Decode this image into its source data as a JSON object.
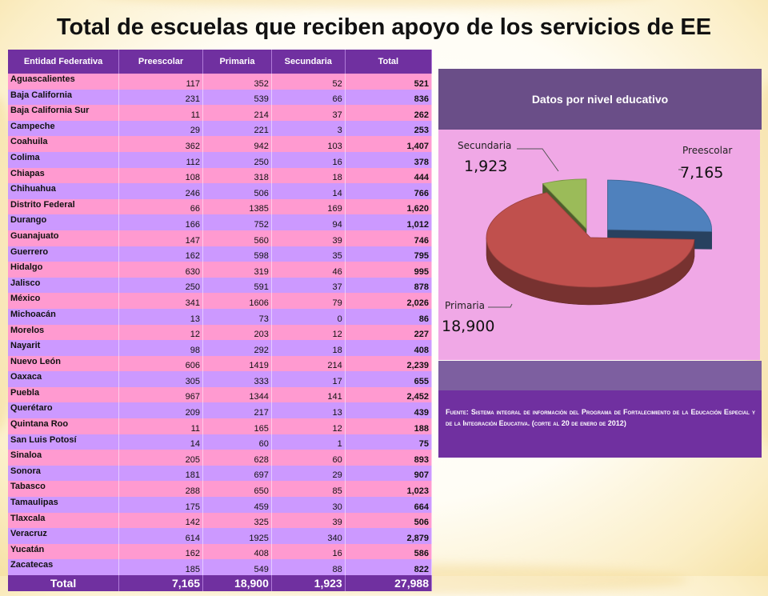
{
  "title": "Total de escuelas que reciben apoyo de los servicios de EE",
  "table": {
    "headers": [
      "Entidad Federativa",
      "Preescolar",
      "Primaria",
      "Secundaria",
      "Total"
    ],
    "rows": [
      {
        "entidad": "Aguascalientes",
        "preescolar": "117",
        "primaria": "352",
        "secundaria": "52",
        "total": "521"
      },
      {
        "entidad": "Baja California",
        "preescolar": "231",
        "primaria": "539",
        "secundaria": "66",
        "total": "836"
      },
      {
        "entidad": "Baja California Sur",
        "preescolar": "11",
        "primaria": "214",
        "secundaria": "37",
        "total": "262"
      },
      {
        "entidad": "Campeche",
        "preescolar": "29",
        "primaria": "221",
        "secundaria": "3",
        "total": "253"
      },
      {
        "entidad": "Coahuila",
        "preescolar": "362",
        "primaria": "942",
        "secundaria": "103",
        "total": "1,407"
      },
      {
        "entidad": "Colima",
        "preescolar": "112",
        "primaria": "250",
        "secundaria": "16",
        "total": "378"
      },
      {
        "entidad": "Chiapas",
        "preescolar": "108",
        "primaria": "318",
        "secundaria": "18",
        "total": "444"
      },
      {
        "entidad": "Chihuahua",
        "preescolar": "246",
        "primaria": "506",
        "secundaria": "14",
        "total": "766"
      },
      {
        "entidad": "Distrito Federal",
        "preescolar": "66",
        "primaria": "1385",
        "secundaria": "169",
        "total": "1,620"
      },
      {
        "entidad": "Durango",
        "preescolar": "166",
        "primaria": "752",
        "secundaria": "94",
        "total": "1,012"
      },
      {
        "entidad": "Guanajuato",
        "preescolar": "147",
        "primaria": "560",
        "secundaria": "39",
        "total": "746"
      },
      {
        "entidad": "Guerrero",
        "preescolar": "162",
        "primaria": "598",
        "secundaria": "35",
        "total": "795"
      },
      {
        "entidad": "Hidalgo",
        "preescolar": "630",
        "primaria": "319",
        "secundaria": "46",
        "total": "995"
      },
      {
        "entidad": "Jalisco",
        "preescolar": "250",
        "primaria": "591",
        "secundaria": "37",
        "total": "878"
      },
      {
        "entidad": "México",
        "preescolar": "341",
        "primaria": "1606",
        "secundaria": "79",
        "total": "2,026"
      },
      {
        "entidad": "Michoacán",
        "preescolar": "13",
        "primaria": "73",
        "secundaria": "0",
        "total": "86"
      },
      {
        "entidad": "Morelos",
        "preescolar": "12",
        "primaria": "203",
        "secundaria": "12",
        "total": "227"
      },
      {
        "entidad": "Nayarit",
        "preescolar": "98",
        "primaria": "292",
        "secundaria": "18",
        "total": "408"
      },
      {
        "entidad": "Nuevo León",
        "preescolar": "606",
        "primaria": "1419",
        "secundaria": "214",
        "total": "2,239"
      },
      {
        "entidad": "Oaxaca",
        "preescolar": "305",
        "primaria": "333",
        "secundaria": "17",
        "total": "655"
      },
      {
        "entidad": "Puebla",
        "preescolar": "967",
        "primaria": "1344",
        "secundaria": "141",
        "total": "2,452"
      },
      {
        "entidad": "Querétaro",
        "preescolar": "209",
        "primaria": "217",
        "secundaria": "13",
        "total": "439"
      },
      {
        "entidad": "Quintana Roo",
        "preescolar": "11",
        "primaria": "165",
        "secundaria": "12",
        "total": "188"
      },
      {
        "entidad": "San Luis Potosí",
        "preescolar": "14",
        "primaria": "60",
        "secundaria": "1",
        "total": "75"
      },
      {
        "entidad": "Sinaloa",
        "preescolar": "205",
        "primaria": "628",
        "secundaria": "60",
        "total": "893"
      },
      {
        "entidad": "Sonora",
        "preescolar": "181",
        "primaria": "697",
        "secundaria": "29",
        "total": "907"
      },
      {
        "entidad": "Tabasco",
        "preescolar": "288",
        "primaria": "650",
        "secundaria": "85",
        "total": "1,023"
      },
      {
        "entidad": "Tamaulipas",
        "preescolar": "175",
        "primaria": "459",
        "secundaria": "30",
        "total": "664"
      },
      {
        "entidad": "Tlaxcala",
        "preescolar": "142",
        "primaria": "325",
        "secundaria": "39",
        "total": "506"
      },
      {
        "entidad": "Veracruz",
        "preescolar": "614",
        "primaria": "1925",
        "secundaria": "340",
        "total": "2,879"
      },
      {
        "entidad": "Yucatán",
        "preescolar": "162",
        "primaria": "408",
        "secundaria": "16",
        "total": "586"
      },
      {
        "entidad": "Zacatecas",
        "preescolar": "185",
        "primaria": "549",
        "secundaria": "88",
        "total": "822"
      }
    ],
    "footer": {
      "label": "Total",
      "preescolar": "7,165",
      "primaria": "18,900",
      "secundaria": "1,923",
      "total": "27,988"
    }
  },
  "panel_title": "Datos por nivel educativo",
  "chart_data": {
    "type": "pie",
    "title": "Datos por nivel educativo",
    "slices": [
      {
        "name": "Preescolar",
        "value": 7165,
        "label": "7,165",
        "color": "#4f81bd"
      },
      {
        "name": "Primaria",
        "value": 18900,
        "label": "18,900",
        "color": "#c0504d"
      },
      {
        "name": "Secundaria",
        "value": 1923,
        "label": "1,923",
        "color": "#9bbb59"
      }
    ]
  },
  "source_text": "Fuente: Sistema integral de información del Programa de Fortalecimiento de la Educación Especial y de la Integración Educativa. (corte al 20 de enero de 2012)"
}
